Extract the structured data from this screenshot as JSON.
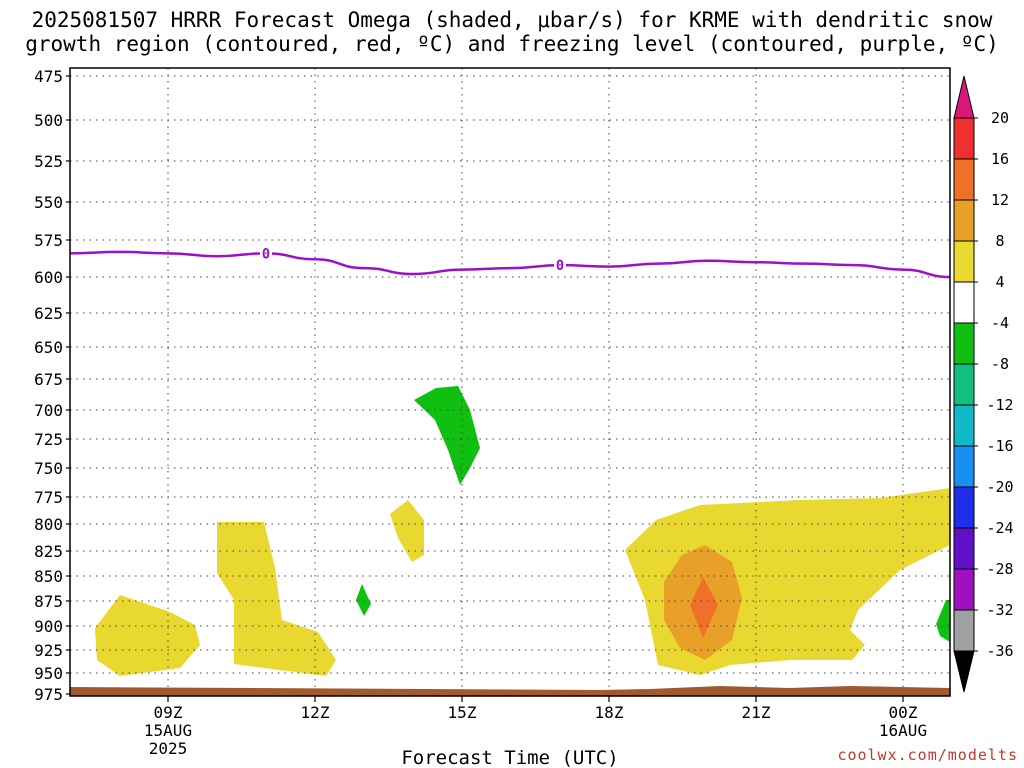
{
  "chart_data": {
    "type": "heatmap",
    "title_line1": "2025081507 HRRR Forecast Omega (shaded, μbar/s) for KRME with dendritic snow",
    "title_line2": "growth region (contoured, red, ºC) and freezing level (contoured, purple, ºC)",
    "xlabel": "Forecast Time (UTC)",
    "credit": "coolwx.com/modelts",
    "y_ticks": [
      "475",
      "500",
      "525",
      "550",
      "575",
      "600",
      "625",
      "650",
      "675",
      "700",
      "725",
      "750",
      "775",
      "800",
      "825",
      "850",
      "875",
      "900",
      "925",
      "950",
      "975"
    ],
    "x_ticks": [
      {
        "label": "09Z",
        "sub1": "15AUG",
        "sub2": "2025"
      },
      {
        "label": "12Z",
        "sub1": "",
        "sub2": ""
      },
      {
        "label": "15Z",
        "sub1": "",
        "sub2": ""
      },
      {
        "label": "18Z",
        "sub1": "",
        "sub2": ""
      },
      {
        "label": "21Z",
        "sub1": "",
        "sub2": ""
      },
      {
        "label": "00Z",
        "sub1": "16AUG",
        "sub2": ""
      }
    ],
    "colorbar": {
      "labels": [
        "20",
        "16",
        "12",
        "8",
        "4",
        "-4",
        "-8",
        "-12",
        "-16",
        "-20",
        "-24",
        "-28",
        "-32",
        "-36"
      ],
      "colors": [
        "#d9187a",
        "#f03030",
        "#f07028",
        "#e8a028",
        "#e8d830",
        "#ffffff",
        "#10c010",
        "#10c080",
        "#10b8c8",
        "#1890f0",
        "#2030e8",
        "#6010c8",
        "#a010c0",
        "#a0a0a0",
        "#000000"
      ]
    },
    "freezing_level": {
      "label": "0",
      "color": "#9b10c8",
      "points": [
        [
          7,
          584
        ],
        [
          8,
          583
        ],
        [
          9,
          584
        ],
        [
          10,
          586
        ],
        [
          11,
          584
        ],
        [
          12,
          588
        ],
        [
          13,
          594
        ],
        [
          14,
          598
        ],
        [
          15,
          595
        ],
        [
          16,
          594
        ],
        [
          17,
          592
        ],
        [
          18,
          593
        ],
        [
          19,
          591
        ],
        [
          20,
          589
        ],
        [
          21,
          590
        ],
        [
          22,
          591
        ],
        [
          23,
          592
        ],
        [
          0,
          595
        ],
        [
          1,
          600
        ]
      ],
      "label_points": [
        [
          11,
          584
        ],
        [
          17,
          592
        ]
      ]
    },
    "shaded_regions": [
      {
        "value": 4,
        "color": "#e8d830"
      },
      {
        "value": 8,
        "color": "#e8a028"
      },
      {
        "value": 12,
        "color": "#f07028"
      },
      {
        "value": -4,
        "color": "#10c010"
      }
    ]
  }
}
